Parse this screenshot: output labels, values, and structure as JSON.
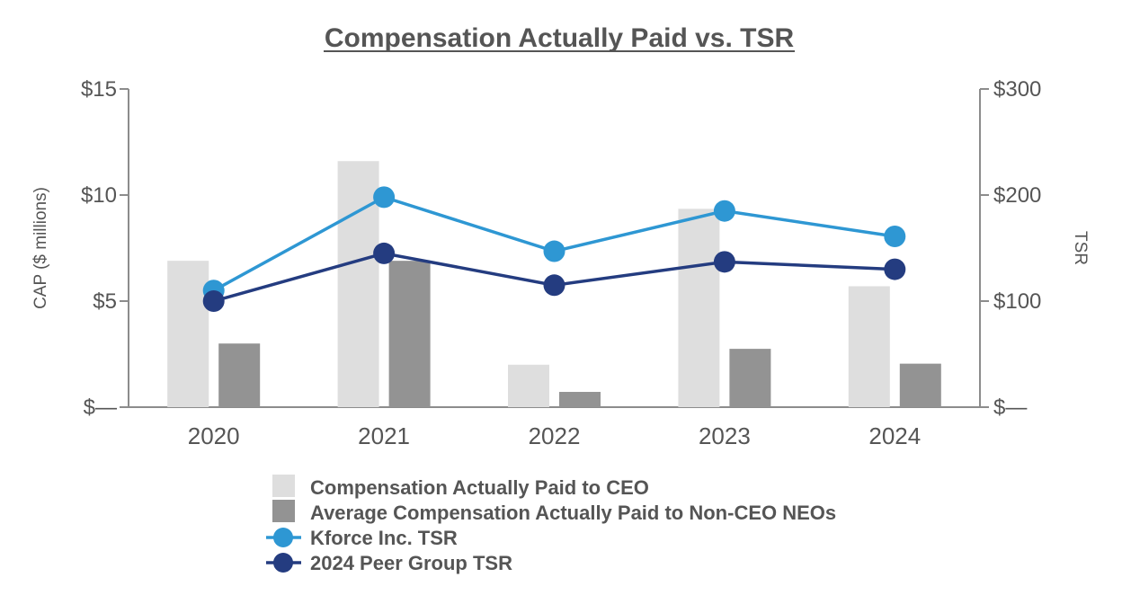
{
  "chart_data": {
    "type": "bar",
    "title": "Compensation Actually Paid vs. TSR",
    "categories": [
      "2020",
      "2021",
      "2022",
      "2023",
      "2024"
    ],
    "ylabel": "CAP ($ millions)",
    "y2label": "TSR",
    "ylim": [
      0,
      15
    ],
    "y2lim": [
      0,
      300
    ],
    "yticks": [
      {
        "value": 0,
        "label": "$—"
      },
      {
        "value": 5,
        "label": "$5"
      },
      {
        "value": 10,
        "label": "$10"
      },
      {
        "value": 15,
        "label": "$15"
      }
    ],
    "y2ticks": [
      {
        "value": 0,
        "label": "$—"
      },
      {
        "value": 100,
        "label": "$100"
      },
      {
        "value": 200,
        "label": "$200"
      },
      {
        "value": 300,
        "label": "$300"
      }
    ],
    "bar_series": [
      {
        "name": "Compensation Actually Paid to CEO",
        "color": "#dedede",
        "values": [
          6.9,
          11.6,
          2.0,
          9.35,
          5.7
        ]
      },
      {
        "name": "Average Compensation Actually Paid to Non-CEO NEOs",
        "color": "#939393",
        "values": [
          3.0,
          6.9,
          0.72,
          2.75,
          2.05
        ]
      }
    ],
    "line_series": [
      {
        "name": "Kforce Inc. TSR",
        "color": "#2e97d3",
        "values": [
          110,
          198,
          147,
          185,
          161
        ]
      },
      {
        "name": "2024 Peer Group TSR",
        "color": "#243c80",
        "values": [
          100,
          145,
          115,
          137,
          130
        ]
      }
    ],
    "legend_position": "bottom"
  }
}
